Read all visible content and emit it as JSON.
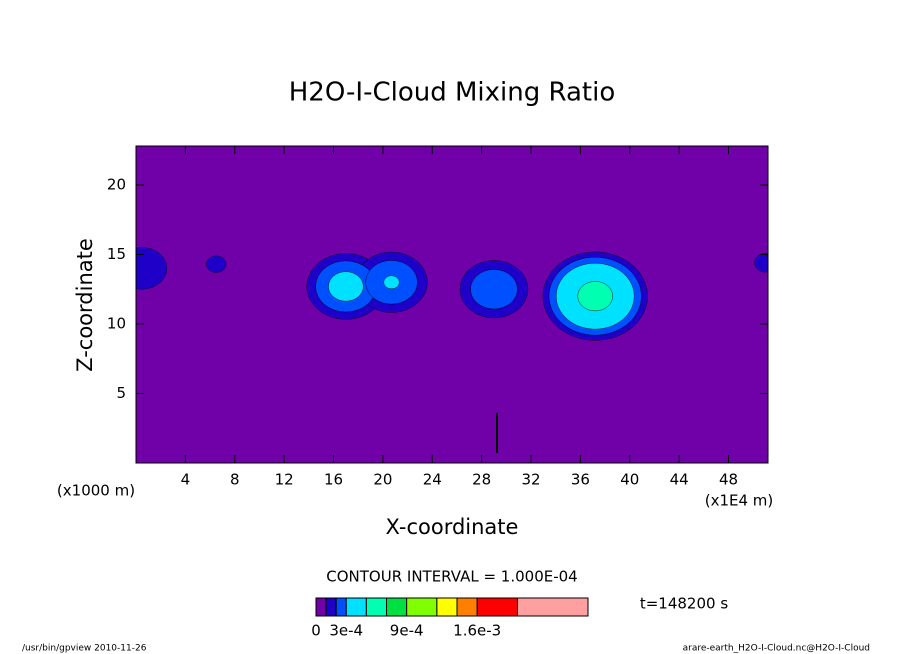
{
  "chart_data": {
    "type": "contour",
    "title": "H2O-I-Cloud Mixing Ratio",
    "x_label": "X-coordinate",
    "y_label": "Z-coordinate",
    "x_unit": "(x1E4 m)",
    "y_unit": "(x1000 m)",
    "xlim": [
      0,
      51.2
    ],
    "ylim": [
      0,
      22.8
    ],
    "xticks": [
      4,
      8,
      12,
      16,
      20,
      24,
      28,
      32,
      36,
      40,
      44,
      48
    ],
    "yticks": [
      5,
      10,
      15,
      20
    ],
    "cells": [
      {
        "x": 0.5,
        "y": 14,
        "value": 0.0002
      },
      {
        "x": 6.5,
        "y": 14.3,
        "value": 0.000116
      },
      {
        "x": 17,
        "y": 12.7,
        "value": 0.00035
      },
      {
        "x": 20.7,
        "y": 13,
        "value": 0.00031
      },
      {
        "x": 29,
        "y": 12.5,
        "value": 0.00029
      },
      {
        "x": 37.2,
        "y": 12,
        "value": 0.00055
      },
      {
        "x": 51,
        "y": 14.4,
        "value": 0.00012
      }
    ],
    "levels": [
      0,
      0.0001,
      0.0002,
      0.0003,
      0.0005,
      0.0007,
      0.0009,
      0.0012,
      0.0014,
      0.0016,
      0.002,
      0.0027
    ],
    "colors": [
      "#7000a8",
      "#1e00c8",
      "#0050ff",
      "#00e0ff",
      "#00ffb0",
      "#00e040",
      "#80ff00",
      "#ffff00",
      "#ff8000",
      "#ff0000",
      "#ffa0a0"
    ],
    "colorbar_ticks": [
      0,
      {
        "value": 0.0003,
        "label": "3e-4"
      },
      {
        "value": 0.0009,
        "label": "9e-4"
      },
      {
        "value": 0.0016,
        "label": "1.6e-3"
      }
    ],
    "contour_interval": "CONTOUR INTERVAL = 1.000E-04",
    "time_label": "t=148200 s",
    "footer_left": "/usr/bin/gpview  2010-11-26",
    "footer_right": "arare-earth_H2O-I-Cloud.nc@H2O-I-Cloud"
  }
}
